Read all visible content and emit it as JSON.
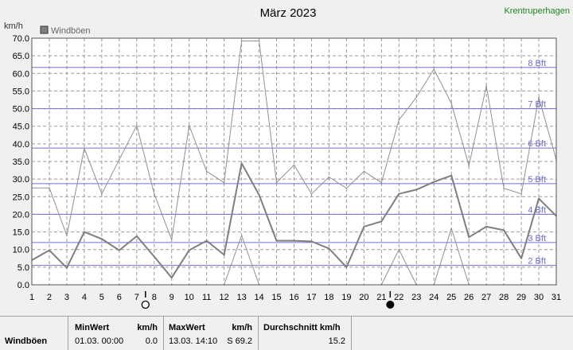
{
  "station": "Krentruperhagen",
  "chart_data": {
    "type": "line",
    "title": "März 2023",
    "ylabel": "km/h",
    "ylim": [
      0,
      70
    ],
    "yticks": [
      "0.0",
      "5.0",
      "10.0",
      "15.0",
      "20.0",
      "25.0",
      "30.0",
      "35.0",
      "40.0",
      "45.0",
      "50.0",
      "55.0",
      "60.0",
      "65.0",
      "70.0"
    ],
    "x": [
      1,
      2,
      3,
      4,
      5,
      6,
      7,
      8,
      9,
      10,
      11,
      12,
      13,
      14,
      15,
      16,
      17,
      18,
      19,
      20,
      21,
      22,
      23,
      24,
      25,
      26,
      27,
      28,
      29,
      30,
      31
    ],
    "xlim": [
      1,
      31
    ],
    "grid": true,
    "legend": "top-left",
    "series": [
      {
        "name": "Windböen",
        "role": "average",
        "color": "#7f7f7f",
        "values": [
          7.0,
          9.8,
          4.8,
          15.0,
          13.0,
          9.8,
          13.8,
          8.0,
          2.0,
          9.8,
          12.5,
          8.5,
          34.5,
          25.5,
          12.5,
          12.5,
          12.3,
          10.3,
          5.0,
          16.5,
          18.0,
          25.8,
          27.0,
          29.2,
          31.0,
          13.5,
          16.5,
          15.5,
          7.5,
          24.5,
          19.5
        ]
      },
      {
        "role": "maximum",
        "color": "#909090",
        "values": [
          27.5,
          27.5,
          14.0,
          38.7,
          25.8,
          35.5,
          45.2,
          25.8,
          12.8,
          45.2,
          32.2,
          29.0,
          69.2,
          69.2,
          29.0,
          34.0,
          25.8,
          30.6,
          27.4,
          32.2,
          29.0,
          46.8,
          53.2,
          61.2,
          51.5,
          33.8,
          56.4,
          27.4,
          25.8,
          53.2,
          35.5
        ]
      },
      {
        "role": "minimum",
        "color": "#909090",
        "values": [
          0,
          0,
          0,
          0,
          0,
          0,
          0,
          0,
          0,
          0,
          0,
          0,
          14.0,
          0,
          0,
          0,
          0,
          0,
          0,
          0,
          0,
          10.0,
          0,
          0,
          16.0,
          0,
          0,
          0,
          0,
          0,
          0
        ]
      }
    ],
    "beaufort_lines": [
      {
        "label": "2 Bft",
        "value": 5.5
      },
      {
        "label": "3 Bft",
        "value": 12.0
      },
      {
        "label": "4 Bft",
        "value": 20.0
      },
      {
        "label": "5 Bft",
        "value": 28.7
      },
      {
        "label": "6 Bft",
        "value": 38.8
      },
      {
        "label": "7 Bft",
        "value": 50.0
      },
      {
        "label": "8 Bft",
        "value": 61.7
      }
    ],
    "moon_phases": [
      {
        "day": 7.5,
        "phase": "full-moon"
      },
      {
        "day": 21.5,
        "phase": "new-moon"
      }
    ]
  },
  "footer": {
    "row_label": "Windböen",
    "min": {
      "header": "MinWert",
      "unit": "km/h",
      "time": "01.03.  00:00",
      "value": "0.0"
    },
    "max": {
      "header": "MaxWert",
      "unit": "km/h",
      "time": "13.03.  14:10",
      "value": "S 69.2"
    },
    "avg": {
      "header": "Durchschnitt km/h",
      "value": "15.2"
    }
  }
}
